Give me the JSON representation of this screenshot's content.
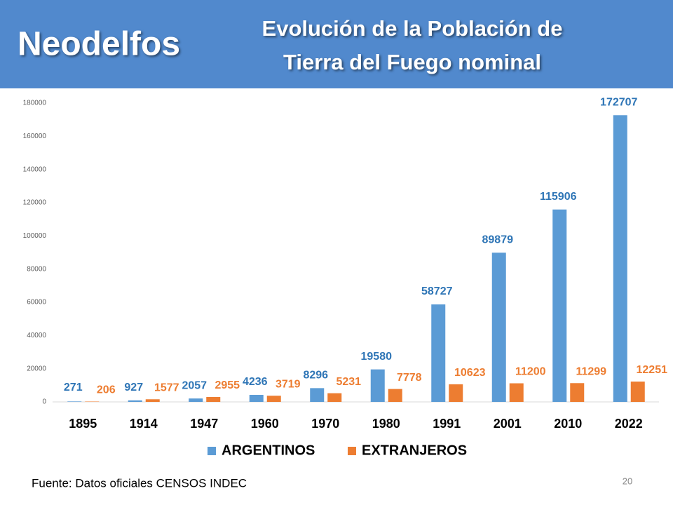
{
  "header": {
    "brand": "Neodelfos",
    "title": [
      "Evolución de la Población de",
      "Tierra del Fuego nominal"
    ]
  },
  "chart_data": {
    "type": "bar",
    "categories": [
      "1895",
      "1914",
      "1947",
      "1960",
      "1970",
      "1980",
      "1991",
      "2001",
      "2010",
      "2022"
    ],
    "series": [
      {
        "name": "ARGENTINOS",
        "color": "#5b9bd5",
        "label_color": "#2e75b6",
        "values": [
          271,
          927,
          2057,
          4236,
          8296,
          19580,
          58727,
          89879,
          115906,
          172707
        ]
      },
      {
        "name": "EXTRANJEROS",
        "color": "#ed7d31",
        "label_color": "#ed7d31",
        "values": [
          206,
          1577,
          2955,
          3719,
          5231,
          7778,
          10623,
          11200,
          11299,
          12251
        ]
      }
    ],
    "ylim": [
      0,
      180000
    ],
    "yticks": [
      0,
      20000,
      40000,
      60000,
      80000,
      100000,
      120000,
      140000,
      160000,
      180000
    ],
    "grid": false,
    "legend": "bottom"
  },
  "footer": {
    "source": "Fuente: Datos oficiales CENSOS INDEC",
    "page": 20
  }
}
